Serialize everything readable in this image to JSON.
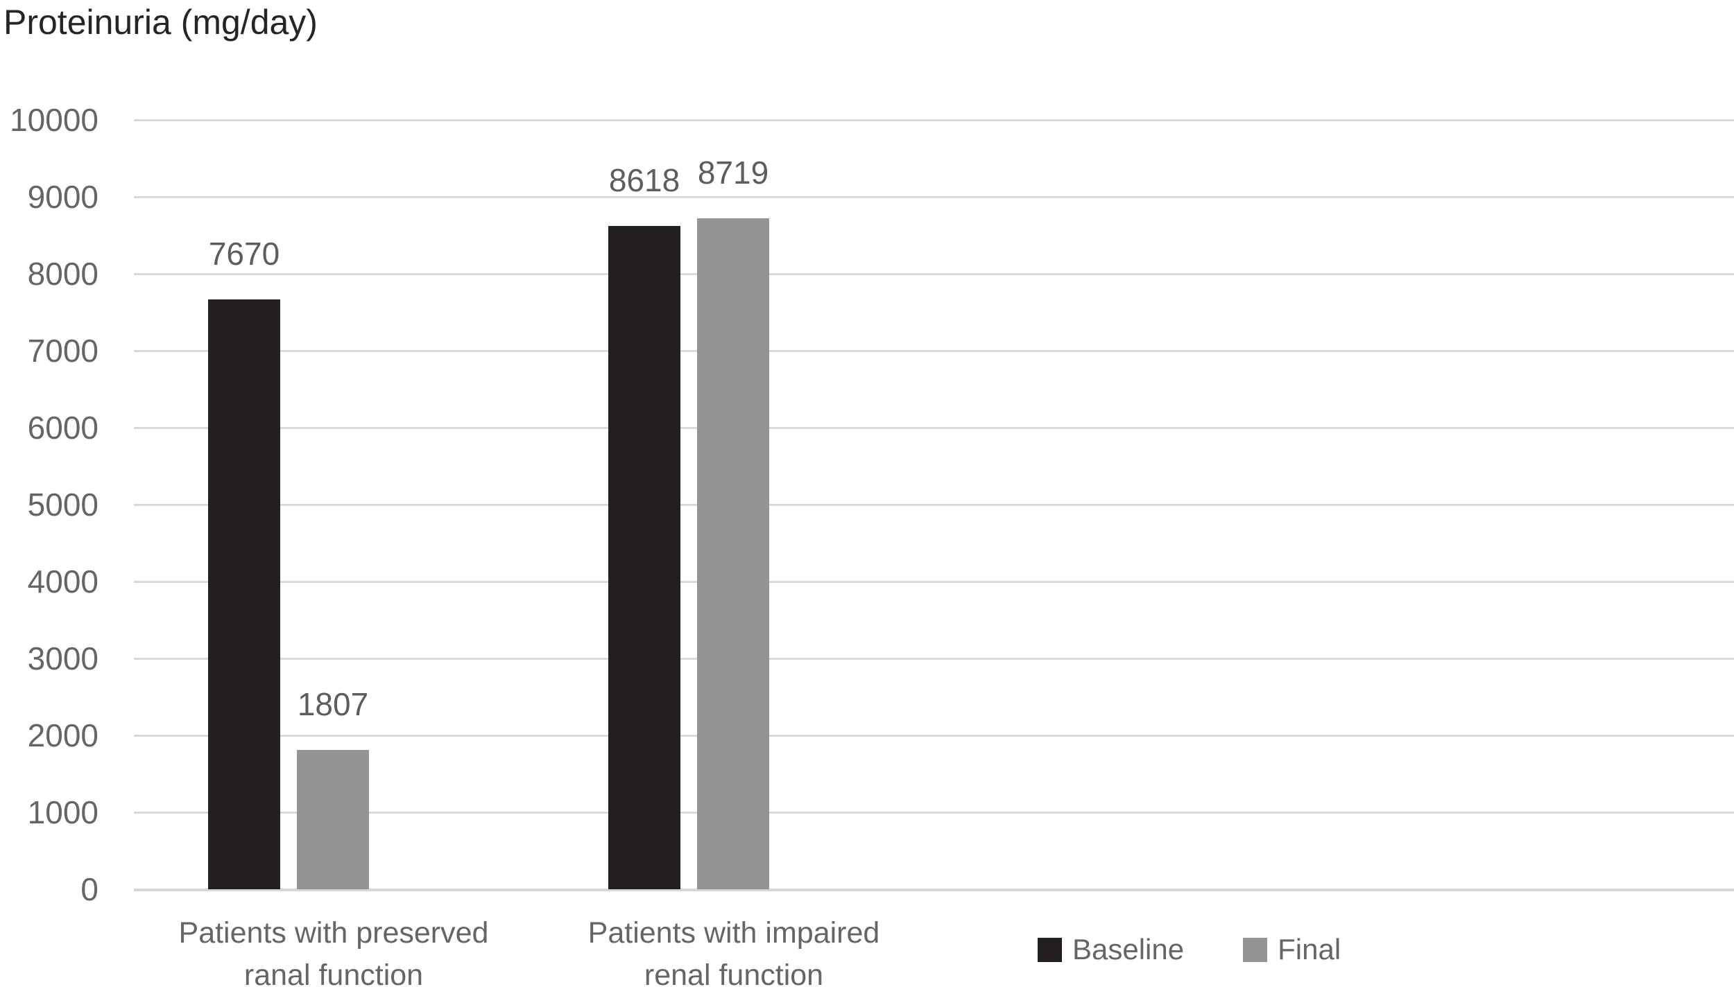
{
  "chart_data": {
    "type": "bar",
    "title": "Proteinuria (mg/day)",
    "categories": [
      "Patients with preserved\nranal function",
      "Patients with impaired\nrenal function"
    ],
    "series": [
      {
        "name": "Baseline",
        "color": "#231f20",
        "values": [
          7670,
          8618
        ]
      },
      {
        "name": "Final",
        "color": "#949396",
        "values": [
          1807,
          8719
        ]
      }
    ],
    "yticks": [
      10000,
      9000,
      8000,
      7000,
      6000,
      5000,
      4000,
      3000,
      2000,
      1000,
      0
    ],
    "ylim": [
      0,
      10000
    ],
    "ytick_step": 1000,
    "xlabel": "",
    "ylabel": "",
    "grid": true,
    "gridline_color": "#d9d9d9",
    "text_color": "#656565",
    "title_color": "#272425",
    "legend_position": "bottom-right",
    "data_labels": true
  }
}
